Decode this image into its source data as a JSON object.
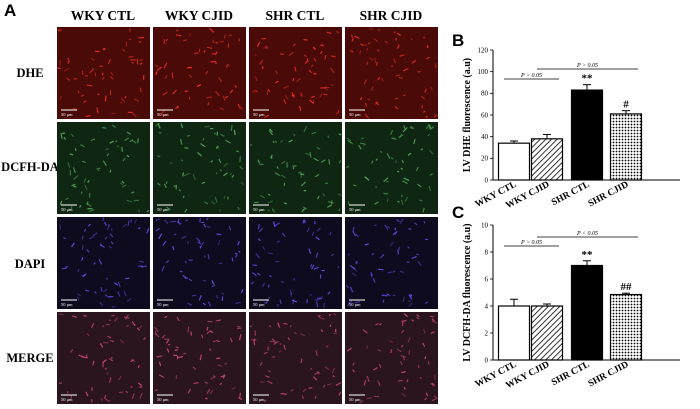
{
  "figure": {
    "panel_a": {
      "letter": "A",
      "columns": [
        "WKY CTL",
        "WKY CJID",
        "SHR CTL",
        "SHR CJID"
      ],
      "rows": [
        "DHE",
        "DCFH-DA",
        "DAPI",
        "MERGE"
      ],
      "scale_bar_label": "50 μm",
      "row_colors": {
        "DHE": {
          "bg": "#4a0b08",
          "cell": "#ff3226"
        },
        "DCFH-DA": {
          "bg": "#0f2612",
          "cell": "#58b760"
        },
        "DAPI": {
          "bg": "#0d0b1d",
          "cell": "#6a52ff"
        },
        "MERGE": {
          "bg": "#2a1420",
          "cell": "#d84a78"
        }
      }
    },
    "panel_b": {
      "letter": "B"
    },
    "panel_c": {
      "letter": "C"
    }
  },
  "chart_data": [
    {
      "type": "bar",
      "panel": "B",
      "categories": [
        "WKY CTL",
        "WKY CJID",
        "SHR CTL",
        "SHR CJID"
      ],
      "values": [
        34,
        38,
        83,
        61
      ],
      "errors": [
        2,
        4,
        5,
        3
      ],
      "patterns": [
        "white",
        "hatched",
        "black",
        "dotted"
      ],
      "ylabel": "LV DHE fluorescence (a.u)",
      "ylim": [
        0,
        120
      ],
      "yticks": [
        0,
        20,
        40,
        60,
        80,
        100,
        120
      ],
      "significance": [
        "",
        "",
        "**",
        "#"
      ],
      "comparisons": [
        {
          "label": "P > 0.05",
          "from": "WKY CTL",
          "to": "WKY CJID"
        },
        {
          "label": "P > 0.05",
          "from": "WKY CJID",
          "to": "SHR CJID"
        }
      ]
    },
    {
      "type": "bar",
      "panel": "C",
      "categories": [
        "WKY CTL",
        "WKY CJID",
        "SHR CTL",
        "SHR CJID"
      ],
      "values": [
        4.0,
        4.0,
        7.0,
        4.85
      ],
      "errors": [
        0.5,
        0.15,
        0.35,
        0.1
      ],
      "patterns": [
        "white",
        "hatched",
        "black",
        "dotted"
      ],
      "ylabel": "LV DCFH-DA fluorescence (a.u)",
      "ylim": [
        0,
        10
      ],
      "yticks": [
        0,
        2,
        4,
        6,
        8,
        10
      ],
      "significance": [
        "",
        "",
        "**",
        "##"
      ],
      "comparisons": [
        {
          "label": "P > 0.05",
          "from": "WKY CTL",
          "to": "WKY CJID"
        },
        {
          "label": "P < 0.05",
          "from": "WKY CJID",
          "to": "SHR CJID"
        }
      ]
    }
  ]
}
